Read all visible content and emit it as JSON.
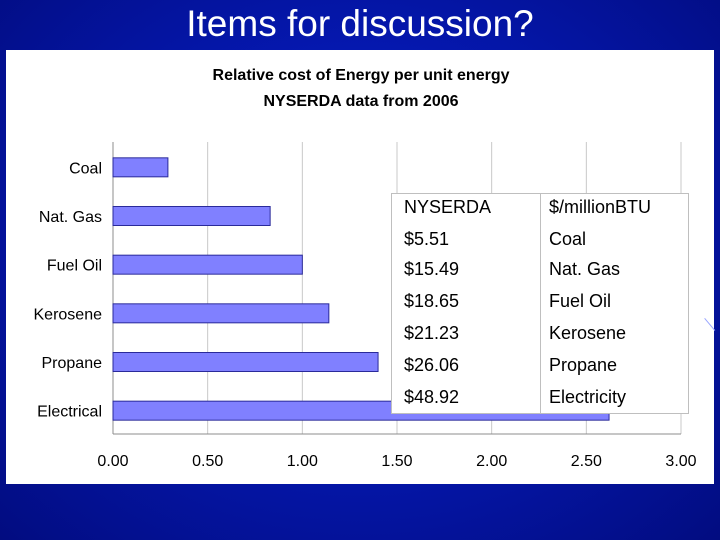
{
  "slide": {
    "title": "Items for discussion?"
  },
  "chart_data": {
    "type": "bar",
    "orientation": "horizontal",
    "title": "Relative cost of Energy per unit energy",
    "subtitle": "NYSERDA data from 2006",
    "categories": [
      "Coal",
      "Nat. Gas",
      "Fuel Oil",
      "Kerosene",
      "Propane",
      "Electrical"
    ],
    "values": [
      0.29,
      0.83,
      1.0,
      1.14,
      1.4,
      2.62
    ],
    "xlim": [
      0.0,
      3.0
    ],
    "xticks": [
      "0.00",
      "0.50",
      "1.00",
      "1.50",
      "2.00",
      "2.50",
      "3.00"
    ],
    "xtick_values": [
      0.0,
      0.5,
      1.0,
      1.5,
      2.0,
      2.5,
      3.0
    ],
    "grid": "vertical",
    "bar_color": "#8080ff",
    "bar_border": "#2a2a9a"
  },
  "table": {
    "headers": [
      "NYSERDA",
      "$/millionBTU"
    ],
    "rows": [
      [
        "$5.51",
        "Coal"
      ],
      [
        "$15.49",
        "Nat. Gas"
      ],
      [
        "$18.65",
        "Fuel Oil"
      ],
      [
        "$21.23",
        "Kerosene"
      ],
      [
        "$26.06",
        "Propane"
      ],
      [
        "$48.92",
        "Electricity"
      ]
    ]
  }
}
